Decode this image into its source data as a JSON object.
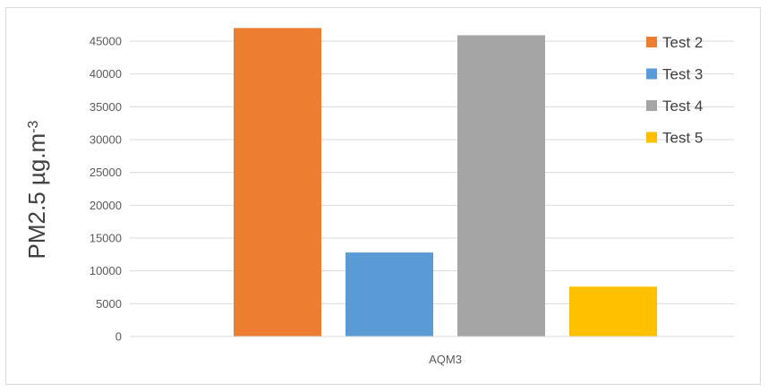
{
  "chart_data": {
    "type": "bar",
    "categories": [
      "AQM3"
    ],
    "series": [
      {
        "name": "Test 2",
        "values": [
          47000
        ],
        "color": "#ED7D31"
      },
      {
        "name": "Test 3",
        "values": [
          12800
        ],
        "color": "#5B9BD5"
      },
      {
        "name": "Test 4",
        "values": [
          45900
        ],
        "color": "#A5A5A5"
      },
      {
        "name": "Test 5",
        "values": [
          7600
        ],
        "color": "#FFC000"
      }
    ],
    "title": "",
    "xlabel": "",
    "ylabel": {
      "base": "PM2.5 µg.m",
      "sup": "-3"
    },
    "ylim": [
      0,
      45000
    ],
    "yticks": [
      0,
      5000,
      10000,
      15000,
      20000,
      25000,
      30000,
      35000,
      40000,
      45000
    ],
    "grid": true,
    "legend_position": "top-right"
  }
}
